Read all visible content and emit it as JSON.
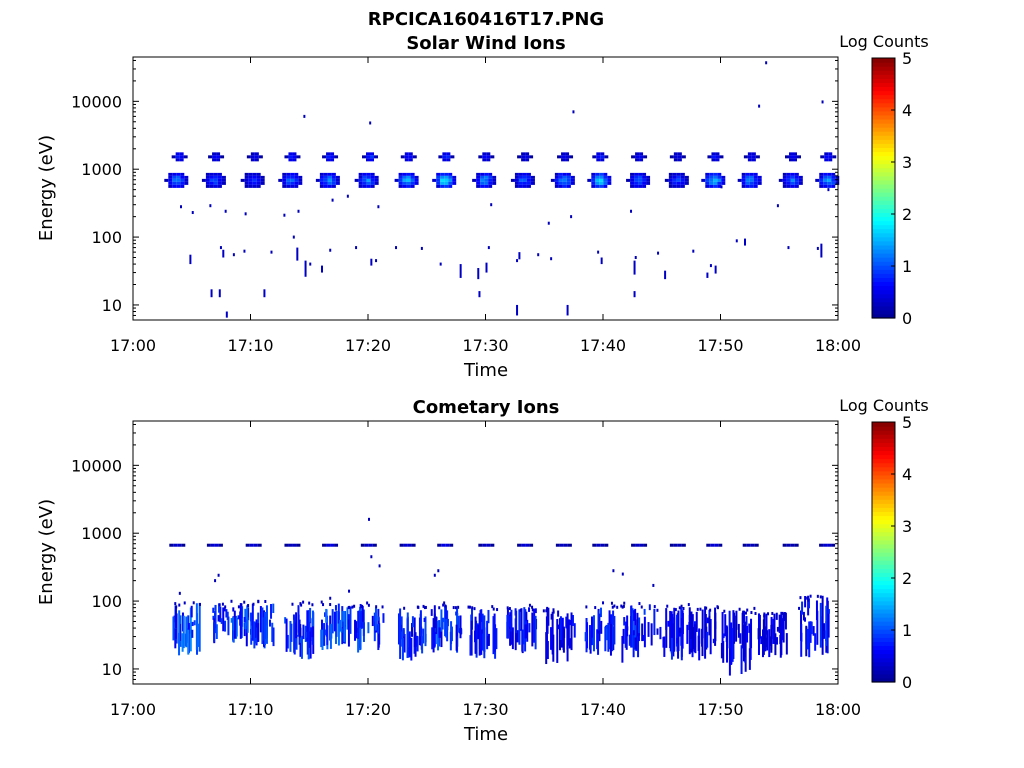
{
  "figure_title": "RPCICA160416T17.PNG",
  "colormap": [
    "#00008f",
    "#0000ff",
    "#0080ff",
    "#00ffff",
    "#80ff80",
    "#ffff00",
    "#ff8000",
    "#ff0000",
    "#800000"
  ],
  "chart_data": [
    {
      "type": "heatmap",
      "title": "Solar Wind Ions",
      "xlabel": "Time",
      "ylabel": "Energy (eV)",
      "xlim": [
        "17:00",
        "18:00"
      ],
      "x_ticks": [
        "17:00",
        "17:10",
        "17:20",
        "17:30",
        "17:40",
        "17:50",
        "18:00"
      ],
      "y_scale": "log",
      "ylim": [
        6,
        45000
      ],
      "y_ticks": [
        10,
        100,
        1000,
        10000
      ],
      "y_tick_labels": [
        "10",
        "100",
        "1000",
        "10000"
      ],
      "colorbar": {
        "label": "Log Counts",
        "range": [
          0,
          5
        ],
        "ticks": [
          "0",
          "1",
          "2",
          "3",
          "4",
          "5"
        ]
      },
      "main_beam": {
        "energy_ev": 720,
        "minutes": [
          3.6,
          6.8,
          10.1,
          13.3,
          16.5,
          19.8,
          23.2,
          26.4,
          29.8,
          33.1,
          36.5,
          39.6,
          42.9,
          46.2,
          49.3,
          52.4,
          55.9,
          59.0
        ],
        "peak_log_counts": [
          1.5,
          1.2,
          1.0,
          1.4,
          1.6,
          1.5,
          1.8,
          2.2,
          1.6,
          1.3,
          1.7,
          2.0,
          1.3,
          1.1,
          2.0,
          1.6,
          1.4,
          1.8
        ]
      },
      "secondary_beam": {
        "energy_ev": 1600,
        "minutes": [
          3.8,
          6.9,
          10.2,
          13.4,
          16.6,
          20.0,
          23.3,
          26.5,
          29.9,
          33.2,
          36.6,
          39.6,
          42.9,
          46.2,
          49.4,
          52.5,
          56.0,
          59.0
        ],
        "peak_log_counts": [
          1.0,
          0.8,
          0.7,
          1.0,
          1.0,
          1.2,
          1.0,
          1.1,
          0.8,
          0.7,
          0.8,
          1.0,
          0.8,
          0.6,
          0.9,
          0.8,
          0.8,
          0.9
        ]
      },
      "sparse_points": [
        [
          4.0,
          280
        ],
        [
          5.0,
          230
        ],
        [
          6.5,
          290
        ],
        [
          7.8,
          240
        ],
        [
          9.5,
          220
        ],
        [
          12.8,
          210
        ],
        [
          14.0,
          240
        ],
        [
          16.9,
          350
        ],
        [
          18.2,
          400
        ],
        [
          20.8,
          280
        ],
        [
          30.4,
          300
        ],
        [
          35.3,
          160
        ],
        [
          37.2,
          200
        ],
        [
          42.3,
          240
        ],
        [
          50.0,
          550
        ],
        [
          54.8,
          290
        ],
        [
          59.1,
          500
        ],
        [
          14.5,
          6000
        ],
        [
          20.1,
          4800
        ],
        [
          37.4,
          7000
        ],
        [
          53.8,
          37000
        ],
        [
          53.2,
          8500
        ],
        [
          58.6,
          9800
        ],
        [
          7.4,
          70
        ],
        [
          8.5,
          55
        ],
        [
          9.4,
          62
        ],
        [
          11.7,
          60
        ],
        [
          13.6,
          100
        ],
        [
          15.0,
          40
        ],
        [
          16.7,
          64
        ],
        [
          18.9,
          70
        ],
        [
          20.6,
          45
        ],
        [
          22.3,
          70
        ],
        [
          24.5,
          68
        ],
        [
          26.1,
          40
        ],
        [
          30.2,
          70
        ],
        [
          32.6,
          45
        ],
        [
          34.4,
          55
        ],
        [
          35.5,
          48
        ],
        [
          39.5,
          60
        ],
        [
          42.7,
          50
        ],
        [
          44.6,
          58
        ],
        [
          47.6,
          62
        ],
        [
          49.1,
          38
        ],
        [
          51.3,
          88
        ],
        [
          55.7,
          70
        ],
        [
          58.2,
          68
        ]
      ],
      "streaks": [
        [
          4.8,
          40,
          55
        ],
        [
          7.6,
          50,
          65
        ],
        [
          13.9,
          45,
          70
        ],
        [
          14.6,
          26,
          45
        ],
        [
          16.0,
          30,
          38
        ],
        [
          20.2,
          38,
          48
        ],
        [
          27.8,
          25,
          40
        ],
        [
          29.3,
          24,
          35
        ],
        [
          30.0,
          30,
          42
        ],
        [
          32.8,
          47,
          60
        ],
        [
          39.8,
          40,
          50
        ],
        [
          42.6,
          28,
          45
        ],
        [
          45.2,
          24,
          32
        ],
        [
          48.8,
          25,
          30
        ],
        [
          49.5,
          29,
          38
        ],
        [
          52.0,
          75,
          95
        ],
        [
          58.5,
          50,
          80
        ],
        [
          6.6,
          13,
          17
        ],
        [
          7.3,
          13,
          17
        ],
        [
          11.1,
          13,
          17
        ],
        [
          7.9,
          6.5,
          8
        ],
        [
          29.4,
          13,
          16
        ],
        [
          32.6,
          7,
          10
        ],
        [
          36.9,
          7,
          10
        ],
        [
          42.6,
          13,
          16
        ]
      ]
    },
    {
      "type": "heatmap",
      "title": "Cometary Ions",
      "xlabel": "Time",
      "ylabel": "Energy (eV)",
      "xlim": [
        "17:00",
        "18:00"
      ],
      "x_ticks": [
        "17:00",
        "17:10",
        "17:20",
        "17:30",
        "17:40",
        "17:50",
        "18:00"
      ],
      "y_scale": "log",
      "ylim": [
        6,
        45000
      ],
      "y_ticks": [
        10,
        100,
        1000,
        10000
      ],
      "y_tick_labels": [
        "10",
        "100",
        "1000",
        "10000"
      ],
      "colorbar": {
        "label": "Log Counts",
        "range": [
          0,
          5
        ],
        "ticks": [
          "0",
          "1",
          "2",
          "3",
          "4",
          "5"
        ]
      },
      "solar_wind_trace": {
        "energy_ev": 700,
        "minutes": [
          3.6,
          6.8,
          10.1,
          13.4,
          16.6,
          19.9,
          23.2,
          26.4,
          29.9,
          33.2,
          36.5,
          39.6,
          42.9,
          46.2,
          49.3,
          52.4,
          55.8,
          58.9
        ],
        "peak_log_counts": [
          0.5,
          0.5,
          0.5,
          0.4,
          0.6,
          0.5,
          0.6,
          0.7,
          0.4,
          0.5,
          0.4,
          0.4,
          0.5,
          0.3,
          0.5,
          0.4,
          0.3,
          0.5
        ]
      },
      "cometary_bursts": {
        "minutes": [
          4.5,
          8.0,
          10.7,
          14.0,
          17.2,
          20.0,
          23.6,
          26.6,
          29.6,
          33.0,
          36.3,
          39.7,
          42.8,
          45.5,
          48.3,
          51.3,
          54.3,
          57.9
        ],
        "energy_top_ev": [
          95,
          95,
          95,
          92,
          92,
          92,
          85,
          90,
          80,
          85,
          80,
          90,
          90,
          80,
          85,
          75,
          70,
          120
        ],
        "energy_bottom_ev": [
          16,
          25,
          20,
          13,
          20,
          18,
          13,
          17,
          14,
          18,
          12,
          16,
          13,
          14,
          13,
          8,
          14,
          14
        ],
        "peak_log_counts": [
          1.2,
          1.1,
          1.0,
          1.0,
          1.1,
          1.0,
          0.9,
          1.0,
          0.8,
          0.8,
          0.7,
          0.9,
          0.9,
          0.8,
          0.7,
          0.7,
          0.6,
          0.8
        ]
      },
      "sparse_points": [
        [
          20.0,
          1600
        ],
        [
          20.2,
          450
        ],
        [
          20.9,
          330
        ],
        [
          25.6,
          240
        ],
        [
          25.9,
          280
        ],
        [
          40.8,
          280
        ],
        [
          41.6,
          250
        ],
        [
          44.2,
          170
        ],
        [
          3.9,
          130
        ],
        [
          6.9,
          200
        ],
        [
          7.2,
          240
        ],
        [
          16.7,
          110
        ],
        [
          18.3,
          140
        ],
        [
          27.4,
          80
        ],
        [
          30.9,
          75
        ],
        [
          38.5,
          82
        ],
        [
          46.6,
          84
        ],
        [
          49.7,
          80
        ],
        [
          52.8,
          78
        ],
        [
          56.6,
          78
        ]
      ]
    }
  ]
}
